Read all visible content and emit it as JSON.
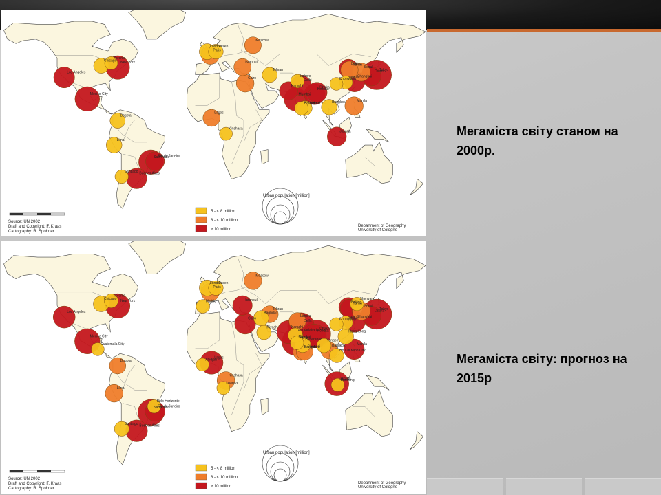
{
  "captions": {
    "top": "Мегаміста світу станом на 2000р.",
    "bottom": "Мегаміста світу: прогноз на 2015р"
  },
  "colors": {
    "c5to8": "#f6c21e",
    "c8to10": "#ef7d2b",
    "c10plus": "#c4171e",
    "land": "#fbf6df",
    "border": "#444444"
  },
  "legend": {
    "items": [
      {
        "label": "5 - < 8 million",
        "class": "c5to8"
      },
      {
        "label": "8 - < 10 million",
        "class": "c8to10"
      },
      {
        "label": "≥ 10 million",
        "class": "c10plus"
      }
    ],
    "size_title": "Urban population [million]"
  },
  "source": {
    "line1": "Source: UN 2002",
    "line2": "Draft and Copyright: F. Kraas",
    "line3": "Cartography: R. Spohner"
  },
  "dept": {
    "line1": "Department of Geography",
    "line2": "University of Cologne"
  },
  "maps": [
    {
      "id": "2000",
      "cities": [
        {
          "name": "Los Angeles",
          "lon": -118.2,
          "lat": 34.0,
          "pop": 13.1,
          "class": "c10plus"
        },
        {
          "name": "Mexico City",
          "lon": -99.1,
          "lat": 19.4,
          "pop": 18.1,
          "class": "c10plus"
        },
        {
          "name": "Chicago",
          "lon": -87.6,
          "lat": 41.9,
          "pop": 6.9,
          "class": "c5to8"
        },
        {
          "name": "New York",
          "lon": -74.0,
          "lat": 40.7,
          "pop": 16.7,
          "class": "c10plus"
        },
        {
          "name": "Toronto",
          "lon": -79.4,
          "lat": 43.7,
          "pop": 5.1,
          "class": "c5to8"
        },
        {
          "name": "Bogota",
          "lon": -74.1,
          "lat": 4.6,
          "pop": 6.8,
          "class": "c5to8"
        },
        {
          "name": "Lima",
          "lon": -77.0,
          "lat": -12.0,
          "pop": 7.4,
          "class": "c5to8"
        },
        {
          "name": "Sao Paulo",
          "lon": -46.6,
          "lat": -23.5,
          "pop": 17.9,
          "class": "c10plus"
        },
        {
          "name": "Rio de Janeiro",
          "lon": -43.2,
          "lat": -22.9,
          "pop": 10.6,
          "class": "c10plus"
        },
        {
          "name": "Santiago",
          "lon": -70.7,
          "lat": -33.4,
          "pop": 5.5,
          "class": "c5to8"
        },
        {
          "name": "Buenos Aires",
          "lon": -58.4,
          "lat": -34.6,
          "pop": 12.6,
          "class": "c10plus"
        },
        {
          "name": "London",
          "lon": -0.1,
          "lat": 51.5,
          "pop": 7.6,
          "class": "c5to8"
        },
        {
          "name": "Paris",
          "lon": 2.4,
          "lat": 48.9,
          "pop": 9.6,
          "class": "c8to10"
        },
        {
          "name": "Essen",
          "lon": 7.0,
          "lat": 51.5,
          "pop": 6.5,
          "class": "c5to8"
        },
        {
          "name": "Moscow",
          "lon": 37.6,
          "lat": 55.8,
          "pop": 8.4,
          "class": "c8to10"
        },
        {
          "name": "Istanbul",
          "lon": 29.0,
          "lat": 41.0,
          "pop": 8.8,
          "class": "c8to10"
        },
        {
          "name": "Cairo",
          "lon": 31.2,
          "lat": 30.0,
          "pop": 9.5,
          "class": "c8to10"
        },
        {
          "name": "Lagos",
          "lon": 3.4,
          "lat": 6.5,
          "pop": 8.7,
          "class": "c8to10"
        },
        {
          "name": "Kinshasa",
          "lon": 15.3,
          "lat": -4.3,
          "pop": 5.1,
          "class": "c5to8"
        },
        {
          "name": "Tehran",
          "lon": 51.4,
          "lat": 35.7,
          "pop": 6.9,
          "class": "c5to8"
        },
        {
          "name": "Karachi",
          "lon": 67.0,
          "lat": 24.9,
          "pop": 10.0,
          "class": "c10plus"
        },
        {
          "name": "Lahore",
          "lon": 74.3,
          "lat": 31.5,
          "pop": 5.5,
          "class": "c5to8"
        },
        {
          "name": "Delhi",
          "lon": 77.2,
          "lat": 28.6,
          "pop": 12.4,
          "class": "c10plus"
        },
        {
          "name": "Mumbai",
          "lon": 72.9,
          "lat": 19.1,
          "pop": 16.1,
          "class": "c10plus"
        },
        {
          "name": "Bangalore",
          "lon": 77.6,
          "lat": 13.0,
          "pop": 5.6,
          "class": "c5to8"
        },
        {
          "name": "Chennai",
          "lon": 80.3,
          "lat": 13.1,
          "pop": 6.6,
          "class": "c5to8"
        },
        {
          "name": "Kolkata",
          "lon": 88.4,
          "lat": 22.6,
          "pop": 13.1,
          "class": "c10plus"
        },
        {
          "name": "Dhaka",
          "lon": 90.4,
          "lat": 23.8,
          "pop": 12.5,
          "class": "c10plus"
        },
        {
          "name": "Bangkok",
          "lon": 100.5,
          "lat": 13.8,
          "pop": 7.3,
          "class": "c5to8"
        },
        {
          "name": "Jakarta",
          "lon": 106.8,
          "lat": -6.2,
          "pop": 11.0,
          "class": "c10plus"
        },
        {
          "name": "Manila",
          "lon": 121.0,
          "lat": 14.6,
          "pop": 10.0,
          "class": "c8to10"
        },
        {
          "name": "Beijing",
          "lon": 116.4,
          "lat": 39.9,
          "pop": 10.8,
          "class": "c10plus"
        },
        {
          "name": "Tianjin",
          "lon": 117.2,
          "lat": 39.1,
          "pop": 9.2,
          "class": "c8to10"
        },
        {
          "name": "Shanghai",
          "lon": 121.5,
          "lat": 31.2,
          "pop": 12.9,
          "class": "c10plus"
        },
        {
          "name": "Wuhan",
          "lon": 114.3,
          "lat": 30.6,
          "pop": 5.2,
          "class": "c5to8"
        },
        {
          "name": "Chongqing",
          "lon": 106.5,
          "lat": 29.6,
          "pop": 5.0,
          "class": "c5to8"
        },
        {
          "name": "Seoul",
          "lon": 127.0,
          "lat": 37.6,
          "pop": 9.9,
          "class": "c8to10"
        },
        {
          "name": "Osaka",
          "lon": 135.5,
          "lat": 34.7,
          "pop": 11.0,
          "class": "c10plus"
        },
        {
          "name": "Tokyo",
          "lon": 139.7,
          "lat": 35.7,
          "pop": 26.4,
          "class": "c10plus"
        }
      ]
    },
    {
      "id": "2015",
      "cities": [
        {
          "name": "Los Angeles",
          "lon": -118.2,
          "lat": 34.0,
          "pop": 14.5,
          "class": "c10plus"
        },
        {
          "name": "Mexico City",
          "lon": -99.1,
          "lat": 19.4,
          "pop": 19.2,
          "class": "c10plus"
        },
        {
          "name": "Guatemala City",
          "lon": -90.5,
          "lat": 14.6,
          "pop": 5.0,
          "class": "c5to8"
        },
        {
          "name": "Chicago",
          "lon": -87.6,
          "lat": 41.9,
          "pop": 7.5,
          "class": "c5to8"
        },
        {
          "name": "Toronto",
          "lon": -79.4,
          "lat": 43.7,
          "pop": 5.8,
          "class": "c5to8"
        },
        {
          "name": "New York",
          "lon": -74.0,
          "lat": 40.7,
          "pop": 17.9,
          "class": "c10plus"
        },
        {
          "name": "Bogota",
          "lon": -74.1,
          "lat": 4.6,
          "pop": 8.0,
          "class": "c8to10"
        },
        {
          "name": "Lima",
          "lon": -77.0,
          "lat": -12.0,
          "pop": 9.4,
          "class": "c8to10"
        },
        {
          "name": "Belo Horizonte",
          "lon": -43.9,
          "lat": -19.9,
          "pop": 5.5,
          "class": "c5to8"
        },
        {
          "name": "Sao Paulo",
          "lon": -46.6,
          "lat": -23.5,
          "pop": 20.4,
          "class": "c10plus"
        },
        {
          "name": "Rio de Janeiro",
          "lon": -43.2,
          "lat": -22.9,
          "pop": 11.9,
          "class": "c10plus"
        },
        {
          "name": "Santiago",
          "lon": -70.7,
          "lat": -33.4,
          "pop": 6.5,
          "class": "c5to8"
        },
        {
          "name": "Buenos Aires",
          "lon": -58.4,
          "lat": -34.6,
          "pop": 14.1,
          "class": "c10plus"
        },
        {
          "name": "London",
          "lon": -0.1,
          "lat": 51.5,
          "pop": 7.6,
          "class": "c5to8"
        },
        {
          "name": "Essen",
          "lon": 7.0,
          "lat": 51.5,
          "pop": 6.5,
          "class": "c5to8"
        },
        {
          "name": "Paris",
          "lon": 2.4,
          "lat": 48.9,
          "pop": 9.7,
          "class": "c8to10"
        },
        {
          "name": "Madrid",
          "lon": -3.7,
          "lat": 40.4,
          "pop": 5.6,
          "class": "c5to8"
        },
        {
          "name": "Moscow",
          "lon": 37.6,
          "lat": 55.8,
          "pop": 9.3,
          "class": "c8to10"
        },
        {
          "name": "Istanbul",
          "lon": 29.0,
          "lat": 41.0,
          "pop": 11.4,
          "class": "c10plus"
        },
        {
          "name": "Cairo",
          "lon": 31.2,
          "lat": 30.0,
          "pop": 13.1,
          "class": "c10plus"
        },
        {
          "name": "Abidjan",
          "lon": -4.0,
          "lat": 5.3,
          "pop": 5.0,
          "class": "c5to8"
        },
        {
          "name": "Lagos",
          "lon": 3.4,
          "lat": 6.5,
          "pop": 16.0,
          "class": "c10plus"
        },
        {
          "name": "Kinshasa",
          "lon": 15.3,
          "lat": -4.3,
          "pop": 9.4,
          "class": "c8to10"
        },
        {
          "name": "Luanda",
          "lon": 13.2,
          "lat": -8.8,
          "pop": 5.1,
          "class": "c5to8"
        },
        {
          "name": "Baghdad",
          "lon": 44.4,
          "lat": 33.3,
          "pop": 6.8,
          "class": "c5to8"
        },
        {
          "name": "Riyadh",
          "lon": 46.7,
          "lat": 24.7,
          "pop": 6.3,
          "class": "c5to8"
        },
        {
          "name": "Tehran",
          "lon": 51.4,
          "lat": 35.7,
          "pop": 8.7,
          "class": "c8to10"
        },
        {
          "name": "Karachi",
          "lon": 67.0,
          "lat": 24.9,
          "pop": 16.2,
          "class": "c10plus"
        },
        {
          "name": "Lahore",
          "lon": 74.3,
          "lat": 31.5,
          "pop": 8.7,
          "class": "c8to10"
        },
        {
          "name": "Delhi",
          "lon": 77.2,
          "lat": 28.6,
          "pop": 20.9,
          "class": "c10plus"
        },
        {
          "name": "Ahmadabad",
          "lon": 72.6,
          "lat": 23.0,
          "pop": 6.4,
          "class": "c5to8"
        },
        {
          "name": "Mumbai",
          "lon": 72.9,
          "lat": 19.1,
          "pop": 22.6,
          "class": "c10plus"
        },
        {
          "name": "Pune",
          "lon": 73.9,
          "lat": 18.5,
          "pop": 5.4,
          "class": "c5to8"
        },
        {
          "name": "Hyderabad",
          "lon": 78.5,
          "lat": 17.4,
          "pop": 7.7,
          "class": "c5to8"
        },
        {
          "name": "Bangalore",
          "lon": 77.6,
          "lat": 13.0,
          "pop": 8.4,
          "class": "c8to10"
        },
        {
          "name": "Chennai",
          "lon": 80.3,
          "lat": 13.1,
          "pop": 8.4,
          "class": "c8to10"
        },
        {
          "name": "Kolkata",
          "lon": 88.4,
          "lat": 22.6,
          "pop": 16.8,
          "class": "c10plus"
        },
        {
          "name": "Dhaka",
          "lon": 90.4,
          "lat": 23.8,
          "pop": 22.8,
          "class": "c10plus"
        },
        {
          "name": "Yangon",
          "lon": 96.2,
          "lat": 16.8,
          "pop": 6.3,
          "class": "c5to8"
        },
        {
          "name": "Bangkok",
          "lon": 100.5,
          "lat": 13.8,
          "pop": 8.5,
          "class": "c8to10"
        },
        {
          "name": "Ho Chi Minh City",
          "lon": 106.7,
          "lat": 10.8,
          "pop": 6.0,
          "class": "c5to8"
        },
        {
          "name": "Jakarta",
          "lon": 106.8,
          "lat": -6.2,
          "pop": 17.3,
          "class": "c10plus"
        },
        {
          "name": "Bandung",
          "lon": 107.6,
          "lat": -6.9,
          "pop": 5.2,
          "class": "c5to8"
        },
        {
          "name": "Manila",
          "lon": 121.0,
          "lat": 14.6,
          "pop": 12.6,
          "class": "c10plus"
        },
        {
          "name": "Beijing",
          "lon": 116.4,
          "lat": 39.9,
          "pop": 11.1,
          "class": "c10plus"
        },
        {
          "name": "Tianjin",
          "lon": 117.2,
          "lat": 39.1,
          "pop": 10.3,
          "class": "c10plus"
        },
        {
          "name": "Shenyang",
          "lon": 123.4,
          "lat": 41.8,
          "pop": 5.4,
          "class": "c5to8"
        },
        {
          "name": "Shanghai",
          "lon": 121.5,
          "lat": 31.2,
          "pop": 13.6,
          "class": "c10plus"
        },
        {
          "name": "Wuhan",
          "lon": 114.3,
          "lat": 30.6,
          "pop": 5.5,
          "class": "c5to8"
        },
        {
          "name": "Chongqing",
          "lon": 106.5,
          "lat": 29.6,
          "pop": 5.3,
          "class": "c5to8"
        },
        {
          "name": "Hong Kong",
          "lon": 114.2,
          "lat": 22.3,
          "pop": 7.2,
          "class": "c5to8"
        },
        {
          "name": "Seoul",
          "lon": 127.0,
          "lat": 37.6,
          "pop": 9.9,
          "class": "c8to10"
        },
        {
          "name": "Osaka",
          "lon": 135.5,
          "lat": 34.7,
          "pop": 11.0,
          "class": "c10plus"
        },
        {
          "name": "Tokyo",
          "lon": 139.7,
          "lat": 35.7,
          "pop": 27.2,
          "class": "c10plus"
        }
      ]
    }
  ]
}
